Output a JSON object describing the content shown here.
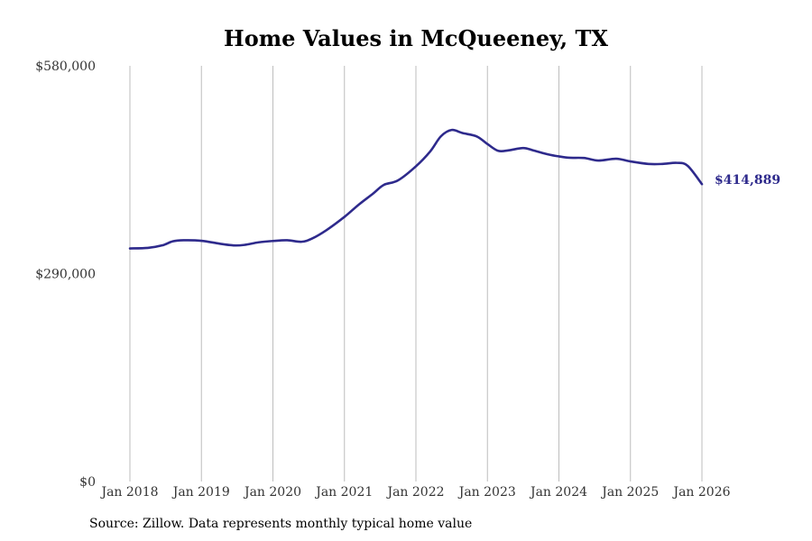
{
  "chart_data": {
    "type": "line",
    "title": "Home Values in McQueeney, TX",
    "xlabel": "",
    "ylabel": "",
    "x_range": [
      2018.0,
      2026.0
    ],
    "ylim": [
      0,
      580000
    ],
    "y_ticks": [
      {
        "value": 0,
        "label": "$0"
      },
      {
        "value": 290000,
        "label": "$290,000"
      },
      {
        "value": 580000,
        "label": "$580,000"
      }
    ],
    "x_ticks": [
      {
        "value": 2018,
        "label": "Jan 2018"
      },
      {
        "value": 2019,
        "label": "Jan 2019"
      },
      {
        "value": 2020,
        "label": "Jan 2020"
      },
      {
        "value": 2021,
        "label": "Jan 2021"
      },
      {
        "value": 2022,
        "label": "Jan 2022"
      },
      {
        "value": 2023,
        "label": "Jan 2023"
      },
      {
        "value": 2024,
        "label": "Jan 2024"
      },
      {
        "value": 2025,
        "label": "Jan 2025"
      },
      {
        "value": 2026,
        "label": "Jan 2026"
      }
    ],
    "grid": "vertical",
    "series": [
      {
        "name": "Typical home value",
        "color": "#2e2a8c",
        "end_label": "$414,889",
        "points": [
          [
            2018.0,
            325200
          ],
          [
            2018.25,
            325900
          ],
          [
            2018.45,
            329400
          ],
          [
            2018.6,
            335100
          ],
          [
            2018.75,
            336600
          ],
          [
            2019.0,
            335900
          ],
          [
            2019.25,
            331900
          ],
          [
            2019.45,
            329400
          ],
          [
            2019.6,
            330100
          ],
          [
            2019.8,
            333700
          ],
          [
            2020.0,
            335600
          ],
          [
            2020.2,
            336600
          ],
          [
            2020.4,
            334500
          ],
          [
            2020.55,
            339100
          ],
          [
            2020.75,
            350800
          ],
          [
            2021.0,
            369200
          ],
          [
            2021.2,
            386300
          ],
          [
            2021.4,
            401700
          ],
          [
            2021.55,
            413800
          ],
          [
            2021.75,
            420200
          ],
          [
            2022.0,
            439800
          ],
          [
            2022.2,
            460600
          ],
          [
            2022.35,
            481700
          ],
          [
            2022.5,
            490500
          ],
          [
            2022.65,
            486200
          ],
          [
            2022.85,
            481500
          ],
          [
            2023.0,
            470900
          ],
          [
            2023.15,
            461400
          ],
          [
            2023.3,
            462100
          ],
          [
            2023.5,
            465300
          ],
          [
            2023.65,
            461800
          ],
          [
            2023.85,
            456400
          ],
          [
            2024.0,
            453600
          ],
          [
            2024.15,
            451700
          ],
          [
            2024.35,
            451400
          ],
          [
            2024.55,
            447800
          ],
          [
            2024.8,
            450300
          ],
          [
            2025.0,
            446600
          ],
          [
            2025.25,
            443100
          ],
          [
            2025.45,
            443100
          ],
          [
            2025.65,
            444600
          ],
          [
            2025.8,
            440500
          ],
          [
            2026.0,
            414889
          ]
        ]
      }
    ]
  },
  "footer": {
    "source": "Source: Zillow. Data represents monthly typical home value"
  }
}
